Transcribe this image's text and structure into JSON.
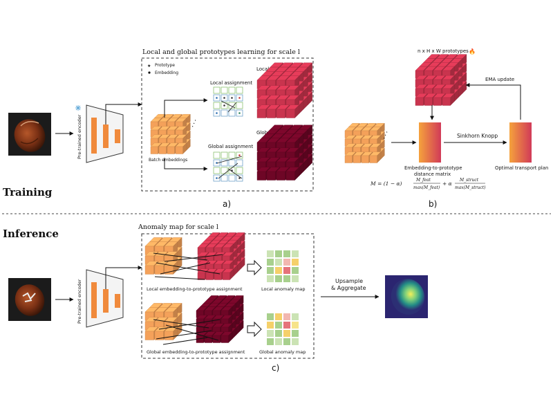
{
  "training": {
    "section_label": "Training",
    "panel_a": {
      "title": "Local and global prototypes learning for scale l",
      "legend_prototype": "Prototype",
      "legend_embedding": "Embedding",
      "local_assignment": "Local assignment",
      "global_assignment": "Global assignment",
      "local_prototypes": "Local prototypes",
      "global_prototypes": "Global prototypes",
      "batch_embeddings": "Batch embeddings",
      "encoder_label": "Pre-trained encoder",
      "caption": "a)"
    },
    "panel_b": {
      "prototypes_label": "n x H x W prototypes",
      "ema_update": "EMA update",
      "sinkhorn": "Sinkhorn Knopp",
      "distance_matrix_line1": "Embedding-to-prototype",
      "distance_matrix_line2": "distance matrix",
      "transport_plan": "Optimal transport plan",
      "formula_lhs": "M = (1 − α)",
      "formula_num1": "M_feat",
      "formula_den1": "max(M_feat)",
      "formula_plus": "+ α",
      "formula_num2": "M_struct",
      "formula_den2": "max(M_struct)",
      "caption": "b)"
    }
  },
  "inference": {
    "section_label": "Inference",
    "panel_c": {
      "title": "Anomaly map for scale l",
      "encoder_label": "Pre-trained encoder",
      "local_assignment": "Local embedding-to-prototype assignment",
      "global_assignment": "Global embedding-to-prototype assignment",
      "local_map": "Local anomaly map",
      "global_map": "Global anomaly map",
      "upsample_line1": "Upsample",
      "upsample_line2": "& Aggregate",
      "caption": "c)"
    }
  },
  "colors": {
    "embedding_orange": "#f4a15a",
    "local_proto_red": "#c9344e",
    "global_proto_maroon": "#6e0626",
    "encoder_orange": "#f08a3c"
  },
  "icons": {
    "frozen": "snowflake-icon",
    "trainable": "fire-icon"
  }
}
